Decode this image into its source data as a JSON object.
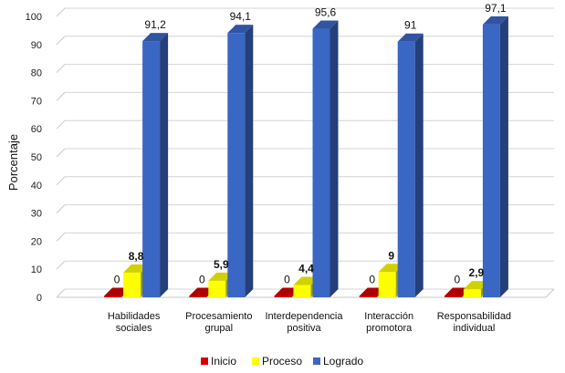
{
  "chart_data": {
    "type": "bar",
    "ylabel": "Porcentaje",
    "ylim": [
      0,
      100
    ],
    "yticks": [
      0,
      10,
      20,
      30,
      40,
      50,
      60,
      70,
      80,
      90,
      100
    ],
    "grid": true,
    "legend_position": "bottom",
    "categories": [
      [
        "Habilidades",
        "sociales"
      ],
      [
        "Procesamiento",
        "grupal"
      ],
      [
        "Interdependencia",
        "positiva"
      ],
      [
        "Interacción",
        "promotora"
      ],
      [
        "Responsabilidad",
        "individual"
      ]
    ],
    "series": [
      {
        "name": "Inicio",
        "color": "#d40000",
        "values": [
          0,
          0,
          0,
          0,
          0
        ],
        "labels": [
          "0",
          "0",
          "0",
          "0",
          "0"
        ]
      },
      {
        "name": "Proceso",
        "color": "#ffff00",
        "values": [
          8.8,
          5.9,
          4.4,
          9,
          2.9
        ],
        "labels": [
          "8,8",
          "5,9",
          "4,4",
          "9",
          "2,9"
        ]
      },
      {
        "name": "Logrado",
        "color": "#3a66c4",
        "values": [
          91.2,
          94.1,
          95.6,
          91,
          97.1
        ],
        "labels": [
          "91,2",
          "94,1",
          "95,6",
          "91",
          "97,1"
        ]
      }
    ]
  }
}
